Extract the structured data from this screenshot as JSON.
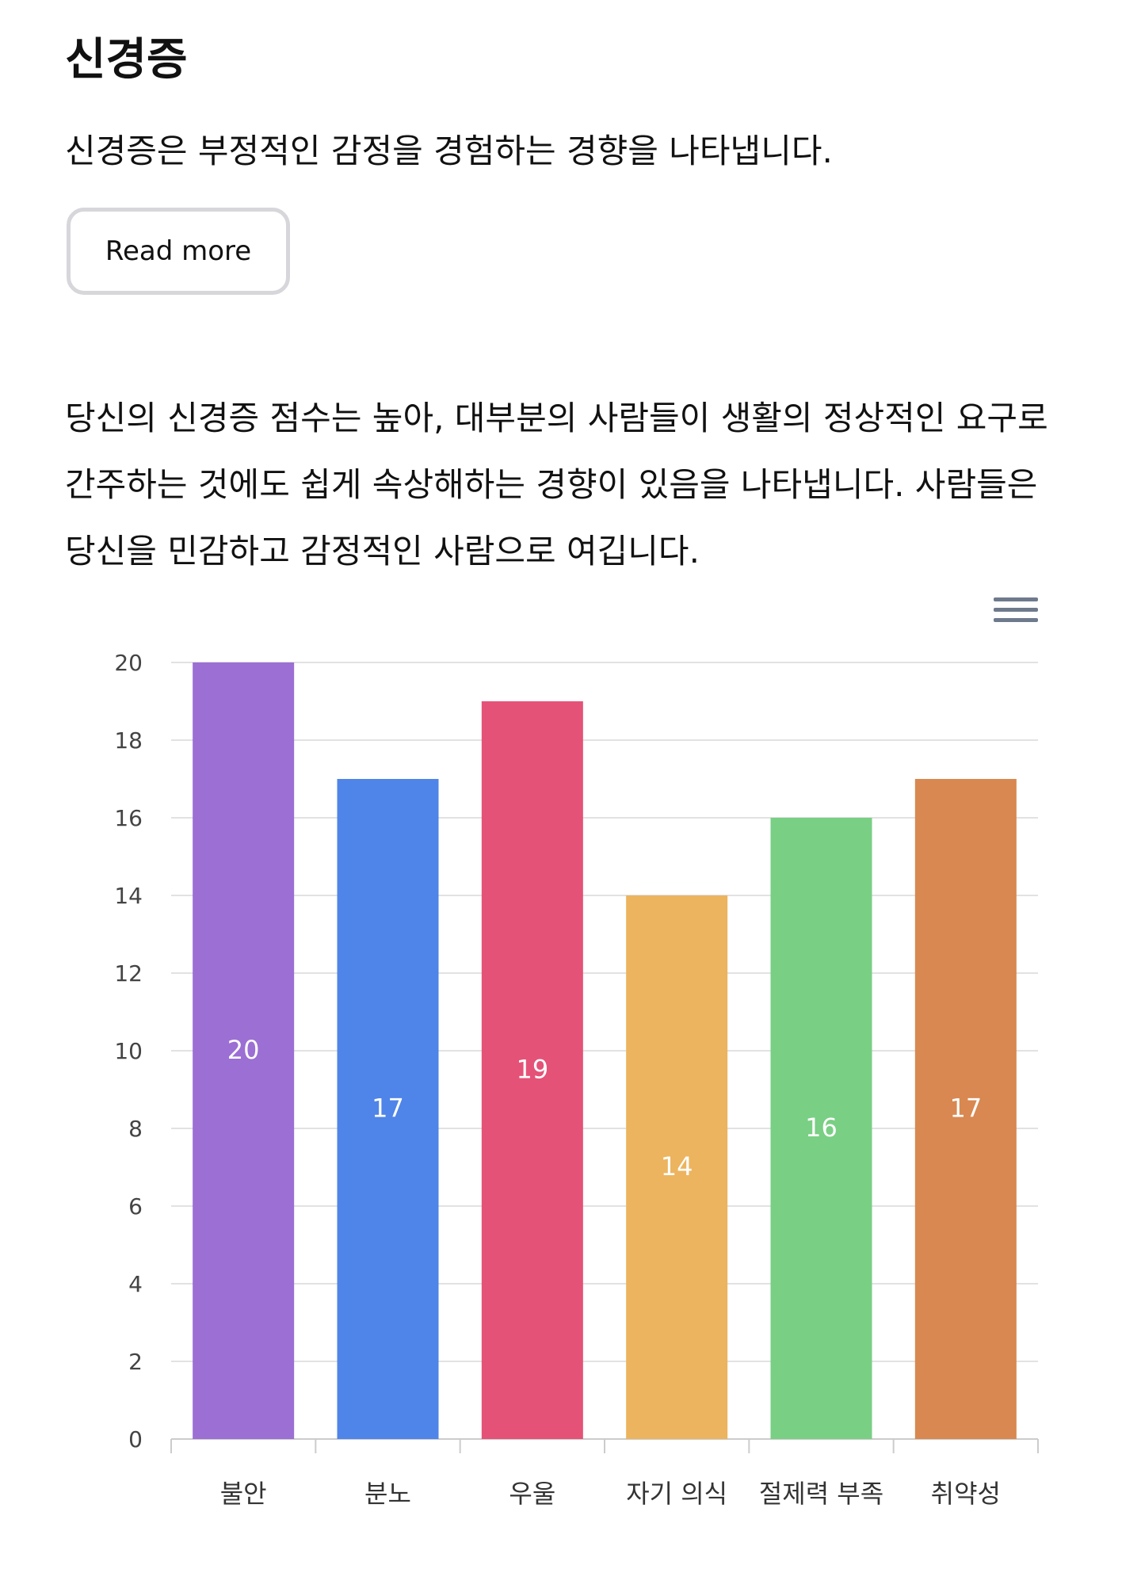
{
  "header": {
    "title": "신경증",
    "intro": "신경증은 부정적인 감정을 경험하는 경향을 나타냅니다.",
    "read_more_label": "Read more"
  },
  "result": {
    "text": "당신의 신경증 점수는 높아, 대부분의 사람들이 생활의 정상적인 요구로 간주하는 것에도 쉽게 속상해하는 경향이 있음을 나타냅니다. 사람들은 당신을 민감하고 감정적인 사람으로 여깁니다."
  },
  "chart_menu": {
    "icon": "hamburger-menu-icon"
  },
  "chart_data": {
    "type": "bar",
    "categories": [
      "불안",
      "분노",
      "우울",
      "자기 의식",
      "절제력 부족",
      "취약성"
    ],
    "values": [
      20,
      17,
      19,
      14,
      16,
      17
    ],
    "colors": [
      "#9b6fd3",
      "#4f84e8",
      "#e45278",
      "#ecb45e",
      "#79cf84",
      "#d88850"
    ],
    "ylim": [
      0,
      20
    ],
    "yticks": [
      0,
      2,
      4,
      6,
      8,
      10,
      12,
      14,
      16,
      18,
      20
    ],
    "grid": true,
    "data_labels": true
  }
}
